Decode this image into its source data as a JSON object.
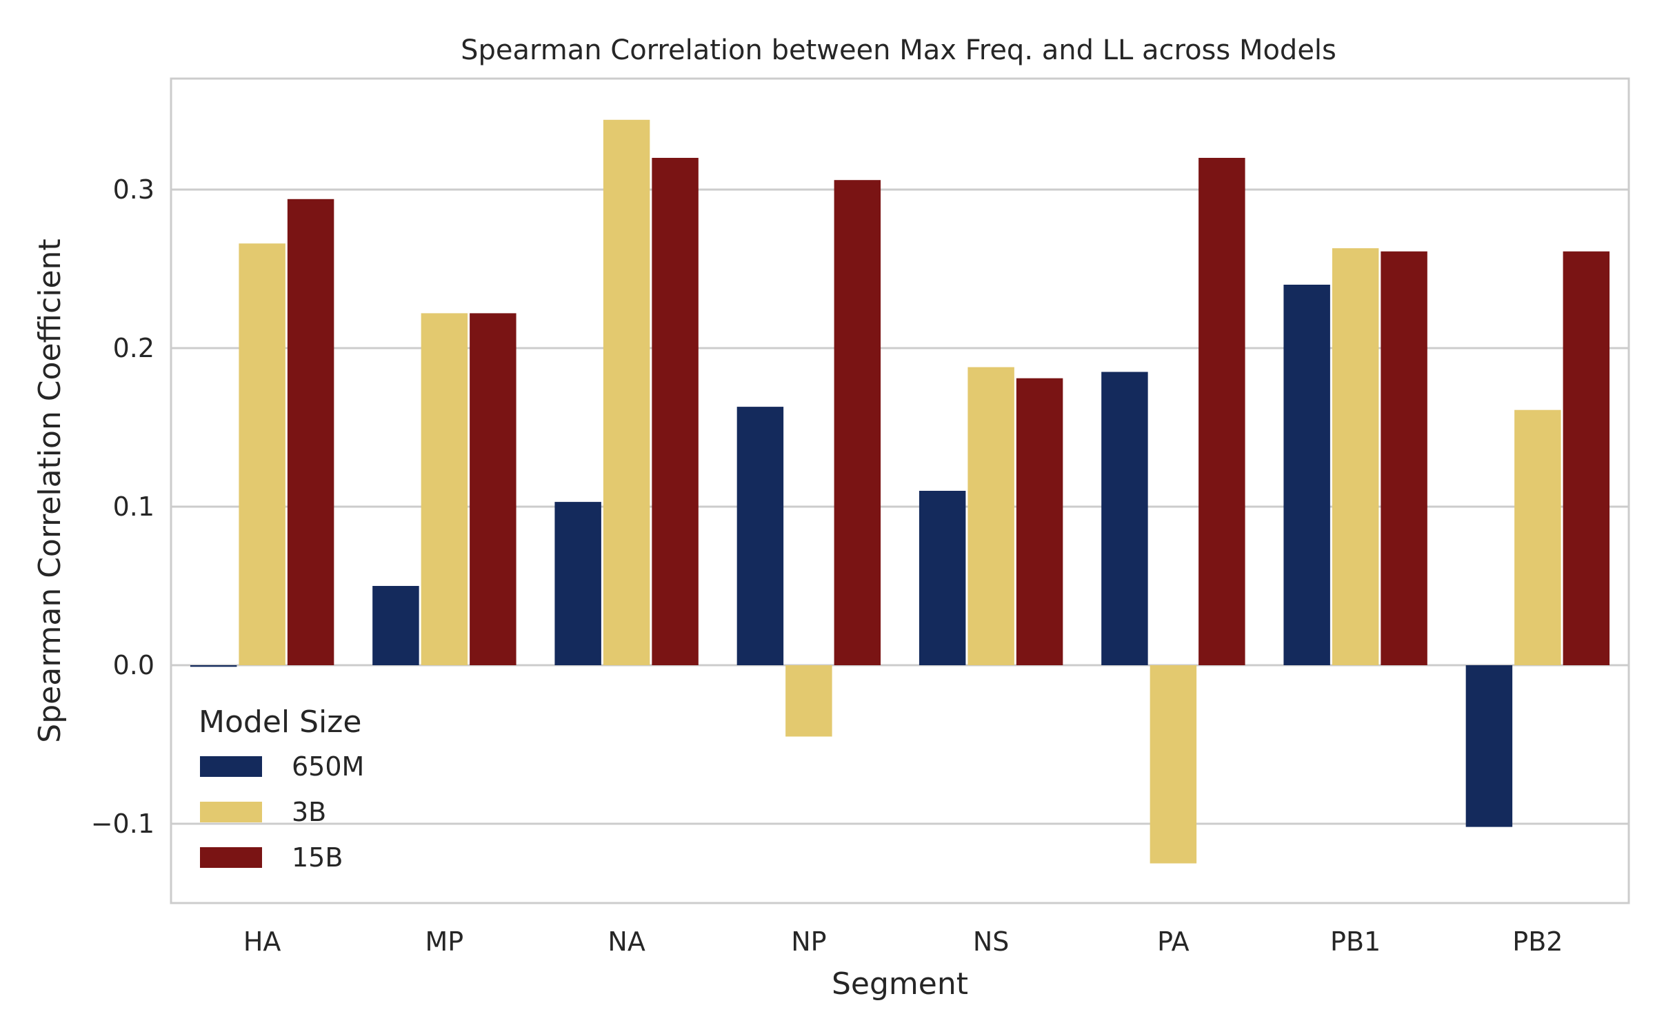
{
  "chart_data": {
    "type": "bar",
    "title": "Spearman Correlation between Max Freq. and LL across Models",
    "xlabel": "Segment",
    "ylabel": "Spearman Correlation Coefficient",
    "categories": [
      "HA",
      "MP",
      "NA",
      "NP",
      "NS",
      "PA",
      "PB1",
      "PB2"
    ],
    "series": [
      {
        "name": "650M",
        "color": "#142a5c",
        "values": [
          -0.001,
          0.05,
          0.103,
          0.163,
          0.11,
          0.185,
          0.24,
          -0.102
        ]
      },
      {
        "name": "3B",
        "color": "#e3c96f",
        "values": [
          0.266,
          0.222,
          0.344,
          -0.045,
          0.188,
          -0.125,
          0.263,
          0.161
        ]
      },
      {
        "name": "15B",
        "color": "#7a1414",
        "values": [
          0.294,
          0.222,
          0.32,
          0.306,
          0.181,
          0.32,
          0.261,
          0.261
        ]
      }
    ],
    "ylim": [
      -0.15,
      0.37
    ],
    "yticks": [
      -0.1,
      0.0,
      0.1,
      0.2,
      0.3
    ],
    "ytick_labels": [
      "−0.1",
      "0.0",
      "0.1",
      "0.2",
      "0.3"
    ],
    "grid": "horizontal",
    "legend": {
      "title": "Model Size",
      "position": "lower-left"
    }
  }
}
